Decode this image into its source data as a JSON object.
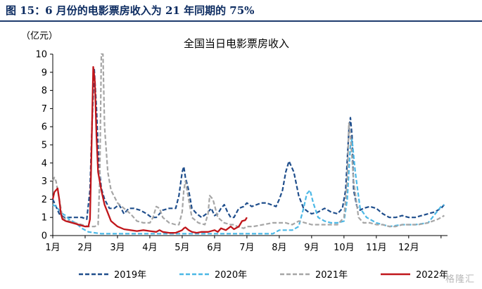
{
  "figure_title": "图 15：6 月份的电影票房收入为 21 年同期的 75%",
  "watermark": "格隆汇",
  "chart_data": {
    "type": "line",
    "title": "全国当日电影票房收入",
    "ylabel": "（亿元）",
    "xlabel": "",
    "x_axis": "month of year (1.0 = Jan 1, 13.0 = end of Dec)",
    "xticks": [
      "1月",
      "2月",
      "3月",
      "4月",
      "5月",
      "6月",
      "7月",
      "8月",
      "9月",
      "10月",
      "11月",
      "12月"
    ],
    "yticks": [
      0,
      1,
      2,
      3,
      4,
      5,
      6,
      7,
      8,
      9,
      10
    ],
    "xlim": [
      1,
      13.2
    ],
    "ylim": [
      0,
      10
    ],
    "legend_position": "bottom",
    "series": [
      {
        "name": "2019年",
        "color": "#1f4e8c",
        "dash": "dashed",
        "x": [
          1.0,
          1.1,
          1.2,
          1.35,
          1.5,
          1.7,
          1.9,
          2.05,
          2.15,
          2.22,
          2.28,
          2.35,
          2.42,
          2.5,
          2.6,
          2.75,
          2.9,
          3.05,
          3.2,
          3.35,
          3.5,
          3.7,
          3.9,
          4.05,
          4.2,
          4.4,
          4.6,
          4.8,
          4.9,
          5.0,
          5.05,
          5.1,
          5.2,
          5.3,
          5.45,
          5.6,
          5.75,
          5.9,
          6.0,
          6.1,
          6.2,
          6.3,
          6.4,
          6.5,
          6.6,
          6.75,
          6.9,
          7.0,
          7.15,
          7.3,
          7.45,
          7.6,
          7.75,
          7.9,
          8.0,
          8.1,
          8.2,
          8.3,
          8.45,
          8.6,
          8.75,
          8.9,
          9.0,
          9.2,
          9.4,
          9.6,
          9.8,
          9.95,
          10.05,
          10.15,
          10.2,
          10.25,
          10.3,
          10.4,
          10.5,
          10.6,
          10.8,
          11.0,
          11.2,
          11.4,
          11.6,
          11.8,
          12.0,
          12.2,
          12.4,
          12.6,
          12.8,
          13.0,
          13.1
        ],
        "y": [
          2.0,
          1.6,
          1.2,
          1.0,
          1.0,
          1.0,
          1.0,
          0.9,
          2.5,
          6.5,
          9.2,
          7.0,
          4.0,
          2.6,
          2.0,
          1.5,
          1.5,
          1.7,
          1.2,
          1.5,
          1.5,
          1.4,
          1.2,
          1.0,
          1.0,
          1.4,
          1.5,
          1.5,
          2.2,
          3.5,
          3.8,
          3.2,
          2.5,
          1.5,
          1.2,
          1.0,
          1.2,
          1.5,
          1.1,
          1.2,
          1.5,
          1.7,
          1.3,
          1.0,
          1.0,
          1.5,
          1.6,
          1.8,
          1.6,
          1.7,
          1.8,
          1.8,
          1.7,
          1.6,
          2.0,
          2.5,
          3.5,
          4.1,
          3.5,
          2.2,
          1.5,
          1.3,
          1.2,
          1.3,
          1.5,
          1.3,
          1.2,
          1.5,
          2.5,
          5.8,
          6.5,
          5.5,
          2.5,
          1.6,
          1.4,
          1.5,
          1.6,
          1.5,
          1.2,
          1.0,
          1.0,
          1.1,
          1.0,
          1.0,
          1.1,
          1.2,
          1.3,
          1.5,
          1.7
        ]
      },
      {
        "name": "2020年",
        "color": "#4cb8e6",
        "dash": "dashed",
        "x": [
          1.0,
          1.1,
          1.2,
          1.3,
          1.4,
          1.5,
          1.6,
          1.7,
          1.9,
          2.1,
          2.5,
          3.0,
          4.0,
          5.0,
          6.0,
          7.0,
          7.5,
          7.8,
          8.0,
          8.2,
          8.4,
          8.6,
          8.75,
          8.85,
          8.95,
          9.05,
          9.2,
          9.4,
          9.6,
          9.8,
          10.0,
          10.1,
          10.2,
          10.25,
          10.35,
          10.5,
          10.7,
          11.0,
          11.4,
          11.8,
          12.2,
          12.6,
          13.0,
          13.1
        ],
        "y": [
          1.7,
          1.6,
          1.4,
          1.2,
          1.1,
          0.9,
          0.8,
          0.7,
          0.4,
          0.2,
          0.1,
          0.1,
          0.1,
          0.1,
          0.1,
          0.1,
          0.1,
          0.1,
          0.3,
          0.3,
          0.3,
          0.5,
          1.5,
          2.3,
          2.5,
          1.8,
          1.0,
          0.8,
          0.7,
          0.7,
          0.8,
          2.0,
          5.0,
          5.3,
          3.5,
          1.5,
          1.0,
          0.7,
          0.5,
          0.6,
          0.6,
          0.7,
          1.6,
          1.7
        ]
      },
      {
        "name": "2021年",
        "color": "#a6a6a6",
        "dash": "dashed",
        "x": [
          1.0,
          1.05,
          1.1,
          1.15,
          1.2,
          1.3,
          1.5,
          1.7,
          1.9,
          2.1,
          2.2,
          2.3,
          2.4,
          2.45,
          2.5,
          2.55,
          2.6,
          2.7,
          2.8,
          3.0,
          3.2,
          3.4,
          3.6,
          3.8,
          4.0,
          4.1,
          4.2,
          4.3,
          4.4,
          4.6,
          4.8,
          4.9,
          5.0,
          5.05,
          5.1,
          5.2,
          5.3,
          5.5,
          5.7,
          5.8,
          5.85,
          5.95,
          6.1,
          6.3,
          6.5,
          6.6,
          6.7,
          6.9,
          7.0,
          7.2,
          7.5,
          7.8,
          8.0,
          8.2,
          8.4,
          8.6,
          8.8,
          9.0,
          9.2,
          9.4,
          9.6,
          9.8,
          10.0,
          10.1,
          10.15,
          10.2,
          10.3,
          10.45,
          10.6,
          10.8,
          11.0,
          11.2,
          11.4,
          11.6,
          11.8,
          12.0,
          12.3,
          12.6,
          12.9,
          13.1
        ],
        "y": [
          3.0,
          3.2,
          3.0,
          2.5,
          2.0,
          1.0,
          0.8,
          0.7,
          0.6,
          0.5,
          0.5,
          0.5,
          0.6,
          3.0,
          10.0,
          10.0,
          6.0,
          3.5,
          2.5,
          1.8,
          1.5,
          1.2,
          0.8,
          0.7,
          0.7,
          1.0,
          1.6,
          1.5,
          1.0,
          0.7,
          0.6,
          0.6,
          1.3,
          2.5,
          3.0,
          2.0,
          1.0,
          0.7,
          0.6,
          1.2,
          2.2,
          2.0,
          1.0,
          0.7,
          0.6,
          0.6,
          0.5,
          0.4,
          0.5,
          0.5,
          0.6,
          0.7,
          0.7,
          0.7,
          0.6,
          0.8,
          0.7,
          0.6,
          0.6,
          0.6,
          0.6,
          0.6,
          1.0,
          3.0,
          6.2,
          5.5,
          3.0,
          1.0,
          0.7,
          0.7,
          0.6,
          0.6,
          0.5,
          0.5,
          0.6,
          0.6,
          0.6,
          0.7,
          0.9,
          1.1
        ]
      },
      {
        "name": "2022年",
        "color": "#c0161b",
        "dash": "solid",
        "x": [
          1.0,
          1.05,
          1.1,
          1.15,
          1.2,
          1.25,
          1.3,
          1.4,
          1.6,
          1.8,
          2.0,
          2.1,
          2.15,
          2.2,
          2.25,
          2.3,
          2.35,
          2.4,
          2.5,
          2.6,
          2.8,
          3.0,
          3.2,
          3.4,
          3.6,
          3.8,
          4.0,
          4.2,
          4.3,
          4.4,
          4.6,
          4.8,
          5.0,
          5.05,
          5.1,
          5.2,
          5.3,
          5.45,
          5.6,
          5.8,
          6.0,
          6.1,
          6.2,
          6.35,
          6.5,
          6.6,
          6.75,
          6.85,
          6.95,
          7.0
        ],
        "y": [
          2.0,
          2.4,
          2.5,
          2.6,
          2.0,
          1.2,
          0.9,
          0.8,
          0.7,
          0.6,
          0.5,
          0.5,
          0.9,
          5.0,
          9.3,
          8.5,
          5.5,
          3.5,
          2.5,
          1.7,
          0.8,
          0.5,
          0.35,
          0.3,
          0.25,
          0.3,
          0.25,
          0.2,
          0.3,
          0.2,
          0.15,
          0.15,
          0.3,
          0.4,
          0.45,
          0.3,
          0.2,
          0.15,
          0.2,
          0.2,
          0.3,
          0.2,
          0.4,
          0.3,
          0.5,
          0.35,
          0.5,
          0.8,
          0.85,
          1.0
        ]
      }
    ]
  }
}
